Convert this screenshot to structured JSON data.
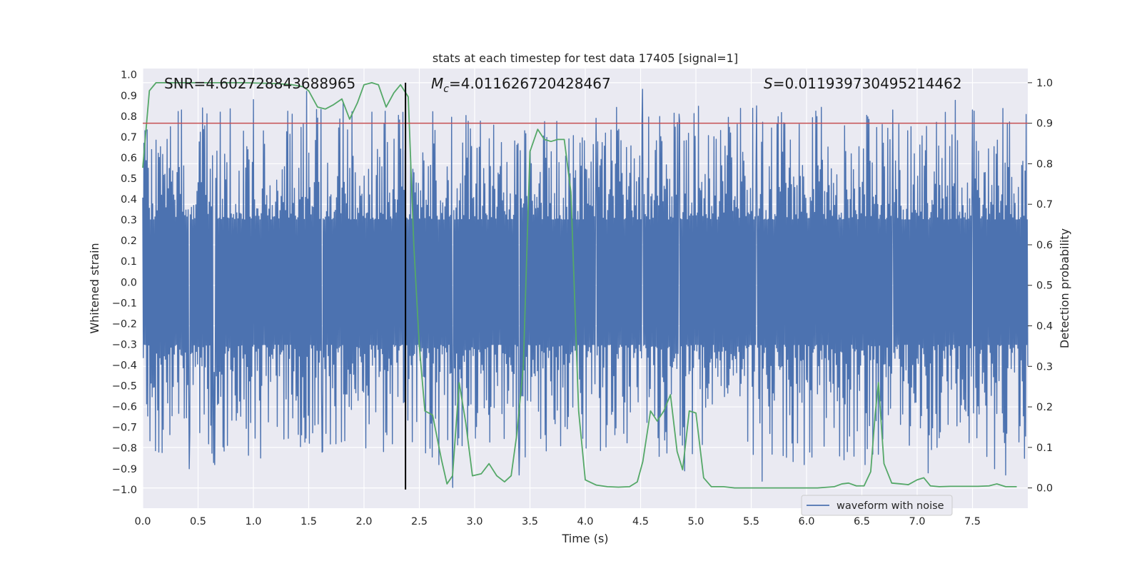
{
  "chart_data": {
    "type": "line",
    "title": "stats at each timestep for test data 17405 [signal=1]",
    "xlabel": "Time (s)",
    "ylabel_left": "Whitened strain",
    "ylabel_right": "Detection probability",
    "xlim": [
      0.0,
      8.0
    ],
    "ylim_left": [
      -1.09,
      1.03
    ],
    "ylim_right": [
      -0.05,
      1.035
    ],
    "x_ticks": [
      0.0,
      0.5,
      1.0,
      1.5,
      2.0,
      2.5,
      3.0,
      3.5,
      4.0,
      4.5,
      5.0,
      5.5,
      6.0,
      6.5,
      7.0,
      7.5
    ],
    "x_tick_labels": [
      "0.0",
      "0.5",
      "1.0",
      "1.5",
      "2.0",
      "2.5",
      "3.0",
      "3.5",
      "4.0",
      "4.5",
      "5.0",
      "5.5",
      "6.0",
      "6.5",
      "7.0",
      "7.5"
    ],
    "y_left_ticks": [
      1.0,
      0.9,
      0.8,
      0.7,
      0.6,
      0.5,
      0.4,
      0.3,
      0.2,
      0.1,
      0.0,
      -0.1,
      -0.2,
      -0.3,
      -0.4,
      -0.5,
      -0.6,
      -0.7,
      -0.8,
      -0.9,
      -1.0
    ],
    "y_left_tick_labels": [
      "1.0",
      "0.9",
      "0.8",
      "0.7",
      "0.6",
      "0.5",
      "0.4",
      "0.3",
      "0.2",
      "0.1",
      "0.0",
      "−0.1",
      "−0.2",
      "−0.3",
      "−0.4",
      "−0.5",
      "−0.6",
      "−0.7",
      "−0.8",
      "−0.9",
      "−1.0"
    ],
    "y_right_ticks": [
      1.0,
      0.9,
      0.8,
      0.7,
      0.6,
      0.5,
      0.4,
      0.3,
      0.2,
      0.1,
      0.0
    ],
    "y_right_tick_labels": [
      "1.0",
      "0.9",
      "0.8",
      "0.7",
      "0.6",
      "0.5",
      "0.4",
      "0.3",
      "0.2",
      "0.1",
      "0.0"
    ],
    "annotations": {
      "snr": "SNR=4.602728843688965",
      "mc_symbol": "M",
      "mc_subscript": "c",
      "mc_value": "=4.011626720428467",
      "s_symbol": "S",
      "s_value": "=0.011939730495214462"
    },
    "legend": {
      "label": "waveform with noise",
      "location": "lower-right"
    },
    "threshold": {
      "value": 0.9,
      "axis": "right",
      "color": "#c44e52"
    },
    "marker_time": 2.375,
    "waveform": {
      "name": "waveform with noise",
      "color": "#4c72b0",
      "n_samples": 1600,
      "base_amplitude": 0.3,
      "seed": 17405,
      "peaks": [
        {
          "t": 0.35,
          "v": 0.83
        },
        {
          "t": 0.54,
          "v": 0.84
        },
        {
          "t": 0.7,
          "v": 0.82
        },
        {
          "t": 1.35,
          "v": 0.81
        },
        {
          "t": 1.48,
          "v": 0.92
        },
        {
          "t": 2.07,
          "v": 0.82
        },
        {
          "t": 3.45,
          "v": 0.73
        },
        {
          "t": 4.1,
          "v": 0.79
        },
        {
          "t": 4.52,
          "v": 0.93
        },
        {
          "t": 4.85,
          "v": 0.81
        },
        {
          "t": 5.55,
          "v": 0.85
        },
        {
          "t": 6.78,
          "v": 0.83
        },
        {
          "t": 7.5,
          "v": 0.83
        },
        {
          "t": 0.42,
          "v": -0.9
        },
        {
          "t": 0.64,
          "v": -0.87
        },
        {
          "t": 0.65,
          "v": -0.88
        },
        {
          "t": 2.8,
          "v": -0.99
        },
        {
          "t": 3.4,
          "v": -0.93
        },
        {
          "t": 4.9,
          "v": -0.91
        },
        {
          "t": 5.6,
          "v": -0.96
        },
        {
          "t": 7.1,
          "v": -0.92
        },
        {
          "t": 7.7,
          "v": -0.9
        },
        {
          "t": 7.8,
          "v": -0.93
        },
        {
          "t": 1.62,
          "v": -0.82
        }
      ]
    },
    "detection_probability": {
      "name": "detection probability",
      "color": "#55a868",
      "axis": "right",
      "x": [
        0.0,
        0.06,
        0.12,
        0.2,
        0.3,
        0.6,
        0.9,
        1.2,
        1.35,
        1.45,
        1.5,
        1.58,
        1.65,
        1.72,
        1.8,
        1.87,
        1.94,
        2.0,
        2.07,
        2.13,
        2.2,
        2.27,
        2.33,
        2.4,
        2.45,
        2.5,
        2.55,
        2.62,
        2.7,
        2.75,
        2.8,
        2.86,
        2.92,
        2.98,
        3.06,
        3.13,
        3.2,
        3.27,
        3.33,
        3.38,
        3.44,
        3.5,
        3.57,
        3.63,
        3.69,
        3.75,
        3.81,
        3.87,
        3.94,
        4.0,
        4.1,
        4.2,
        4.3,
        4.4,
        4.47,
        4.52,
        4.59,
        4.65,
        4.71,
        4.77,
        4.83,
        4.88,
        4.94,
        5.0,
        5.07,
        5.14,
        5.25,
        5.35,
        5.5,
        5.7,
        5.9,
        6.1,
        6.25,
        6.32,
        6.38,
        6.45,
        6.52,
        6.58,
        6.62,
        6.65,
        6.7,
        6.77,
        6.85,
        6.92,
        7.0,
        7.06,
        7.12,
        7.2,
        7.3,
        7.4,
        7.55,
        7.65,
        7.72,
        7.8,
        7.9
      ],
      "y": [
        0.79,
        0.98,
        1.0,
        1.0,
        1.0,
        1.0,
        1.0,
        0.998,
        0.995,
        0.99,
        0.98,
        0.94,
        0.935,
        0.945,
        0.96,
        0.91,
        0.95,
        0.995,
        1.0,
        0.995,
        0.94,
        0.975,
        0.995,
        0.965,
        0.6,
        0.35,
        0.19,
        0.18,
        0.07,
        0.01,
        0.03,
        0.26,
        0.16,
        0.03,
        0.035,
        0.06,
        0.03,
        0.015,
        0.03,
        0.13,
        0.3,
        0.83,
        0.885,
        0.86,
        0.855,
        0.86,
        0.86,
        0.73,
        0.19,
        0.02,
        0.007,
        0.003,
        0.002,
        0.003,
        0.015,
        0.065,
        0.19,
        0.165,
        0.19,
        0.23,
        0.09,
        0.045,
        0.19,
        0.185,
        0.025,
        0.003,
        0.003,
        0.0,
        0.0,
        0.0,
        0.0,
        0.0,
        0.003,
        0.01,
        0.012,
        0.005,
        0.005,
        0.04,
        0.18,
        0.26,
        0.06,
        0.012,
        0.01,
        0.008,
        0.02,
        0.025,
        0.005,
        0.003,
        0.004,
        0.004,
        0.004,
        0.005,
        0.01,
        0.003,
        0.003
      ]
    }
  }
}
